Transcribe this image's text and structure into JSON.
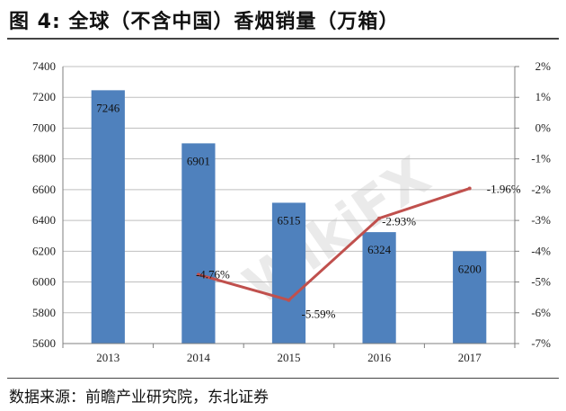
{
  "title": "图 4:  全球（不含中国）香烟销量（万箱）",
  "source": "数据来源：前瞻产业研究院，东北证券",
  "watermark": "WikiFX",
  "chart_data": {
    "type": "bar",
    "categories": [
      "2013",
      "2014",
      "2015",
      "2016",
      "2017"
    ],
    "series": [
      {
        "type": "bar",
        "axis": "left",
        "values": [
          7246,
          6901,
          6515,
          6324,
          6200
        ],
        "labels": [
          "7246",
          "6901",
          "6515",
          "6324",
          "6200"
        ],
        "color": "#4f81bd"
      },
      {
        "type": "line",
        "axis": "right",
        "values": [
          null,
          -4.76,
          -5.59,
          -2.93,
          -1.96
        ],
        "labels": [
          "",
          "-4.76%",
          "-5.59%",
          "-2.93%",
          "-1.96%"
        ],
        "color": "#c0504d"
      }
    ],
    "y_left": {
      "range": [
        5600,
        7400
      ],
      "ticks": [
        "5600",
        "5800",
        "6000",
        "6200",
        "6400",
        "6600",
        "6800",
        "7000",
        "7200",
        "7400"
      ]
    },
    "y_right": {
      "range": [
        -7,
        2
      ],
      "ticks": [
        "-7%",
        "-6%",
        "-5%",
        "-4%",
        "-3%",
        "-2%",
        "-1%",
        "0%",
        "1%",
        "2%"
      ]
    },
    "grid": true,
    "title": "",
    "xlabel": "",
    "ylabel": ""
  }
}
